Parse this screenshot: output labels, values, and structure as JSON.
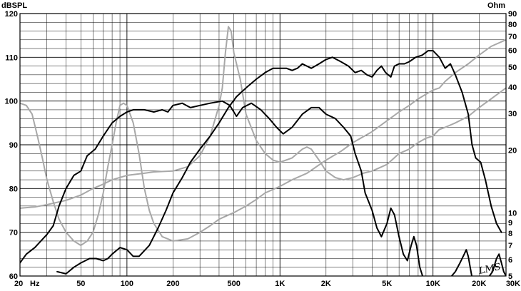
{
  "chart_data": {
    "type": "line",
    "ylabel": "dBSPL",
    "y2label": "Ohm",
    "signature": "LMS",
    "xscale": "log",
    "xlim": [
      20,
      30000
    ],
    "ylim": [
      60,
      120
    ],
    "y2lim": [
      5,
      90
    ],
    "y2scale": "log",
    "grid": true,
    "colors": {
      "dark": "#000000",
      "gray": "#a8a8a8"
    },
    "x_ticks": [
      {
        "v": 20,
        "label": "20"
      },
      {
        "v": 50,
        "label": "50"
      },
      {
        "v": 100,
        "label": "100"
      },
      {
        "v": 200,
        "label": "200"
      },
      {
        "v": 500,
        "label": "500"
      },
      {
        "v": 1000,
        "label": "1K"
      },
      {
        "v": 2000,
        "label": "2K"
      },
      {
        "v": 5000,
        "label": "5K"
      },
      {
        "v": 10000,
        "label": "10K"
      },
      {
        "v": 20000,
        "label": "20K"
      },
      {
        "v": 30000,
        "label": "30K"
      }
    ],
    "x_unit": "Hz",
    "y_ticks": [
      60,
      70,
      80,
      90,
      100,
      110,
      120
    ],
    "y2_ticks": [
      5,
      6,
      7,
      8,
      9,
      10,
      20,
      30,
      40,
      50,
      60,
      70,
      80,
      90
    ],
    "series": [
      {
        "color": "dark",
        "width": 2,
        "axis": "y",
        "points": [
          [
            20,
            63
          ],
          [
            22,
            65
          ],
          [
            25,
            66.5
          ],
          [
            30,
            69.5
          ],
          [
            33,
            71.5
          ],
          [
            36,
            76
          ],
          [
            40,
            80
          ],
          [
            45,
            83
          ],
          [
            50,
            84
          ],
          [
            55,
            87.5
          ],
          [
            62,
            89
          ],
          [
            70,
            92
          ],
          [
            80,
            95
          ],
          [
            90,
            96.5
          ],
          [
            100,
            97.5
          ],
          [
            110,
            98
          ],
          [
            130,
            98
          ],
          [
            150,
            97.5
          ],
          [
            170,
            98
          ],
          [
            185,
            97.5
          ],
          [
            200,
            99
          ],
          [
            230,
            99.5
          ],
          [
            260,
            98.5
          ],
          [
            300,
            99
          ],
          [
            350,
            99.5
          ],
          [
            420,
            100
          ],
          [
            470,
            99
          ],
          [
            520,
            96.5
          ],
          [
            570,
            98.5
          ],
          [
            650,
            99.5
          ],
          [
            750,
            98
          ],
          [
            850,
            96
          ],
          [
            950,
            94
          ],
          [
            1050,
            92.5
          ],
          [
            1200,
            94
          ],
          [
            1400,
            97
          ],
          [
            1600,
            98.5
          ],
          [
            1800,
            98.5
          ],
          [
            2000,
            97
          ],
          [
            2300,
            96
          ],
          [
            2600,
            94
          ],
          [
            2900,
            92
          ],
          [
            3100,
            88
          ],
          [
            3400,
            84
          ],
          [
            3600,
            79
          ],
          [
            4000,
            75
          ],
          [
            4300,
            71
          ],
          [
            4600,
            69
          ],
          [
            5000,
            72
          ],
          [
            5300,
            75.5
          ],
          [
            5600,
            74
          ],
          [
            6000,
            69
          ],
          [
            6400,
            65
          ],
          [
            6800,
            63.5
          ],
          [
            7200,
            67
          ],
          [
            7500,
            69
          ],
          [
            7800,
            67
          ],
          [
            8200,
            62
          ],
          [
            8600,
            59
          ],
          [
            9000,
            57
          ],
          [
            9500,
            56
          ]
        ]
      },
      {
        "color": "dark",
        "width": 2,
        "axis": "y",
        "points": [
          [
            35,
            61
          ],
          [
            40,
            60.5
          ],
          [
            45,
            62
          ],
          [
            50,
            63
          ],
          [
            57,
            64
          ],
          [
            63,
            64
          ],
          [
            70,
            63.5
          ],
          [
            75,
            64
          ],
          [
            80,
            65
          ],
          [
            90,
            66.5
          ],
          [
            100,
            66
          ],
          [
            110,
            64.5
          ],
          [
            120,
            64.5
          ],
          [
            140,
            67
          ],
          [
            160,
            71
          ],
          [
            180,
            75
          ],
          [
            200,
            79
          ],
          [
            230,
            82.5
          ],
          [
            260,
            86
          ],
          [
            300,
            89
          ],
          [
            350,
            92
          ],
          [
            400,
            95
          ],
          [
            460,
            98.5
          ],
          [
            520,
            101
          ],
          [
            600,
            103
          ],
          [
            700,
            105
          ],
          [
            800,
            106.5
          ],
          [
            900,
            107.5
          ],
          [
            1000,
            107.5
          ],
          [
            1100,
            107.5
          ],
          [
            1200,
            107
          ],
          [
            1300,
            107.5
          ],
          [
            1400,
            108.5
          ],
          [
            1600,
            107.5
          ],
          [
            1800,
            108.5
          ],
          [
            2000,
            109.5
          ],
          [
            2200,
            110
          ],
          [
            2500,
            109
          ],
          [
            2800,
            108
          ],
          [
            3100,
            106.5
          ],
          [
            3400,
            107
          ],
          [
            3700,
            106
          ],
          [
            4000,
            105.5
          ],
          [
            4300,
            107
          ],
          [
            4600,
            108
          ],
          [
            4900,
            106.5
          ],
          [
            5300,
            105.5
          ],
          [
            5600,
            108
          ],
          [
            6000,
            108.5
          ],
          [
            6500,
            108.5
          ],
          [
            7000,
            109
          ],
          [
            7700,
            110
          ],
          [
            8500,
            110.5
          ],
          [
            9300,
            111.5
          ],
          [
            10000,
            111.5
          ],
          [
            11000,
            110
          ],
          [
            12000,
            107.5
          ],
          [
            13000,
            108.5
          ],
          [
            14000,
            106
          ],
          [
            15500,
            102
          ],
          [
            17000,
            97
          ],
          [
            18000,
            90
          ],
          [
            19000,
            87
          ],
          [
            20500,
            86
          ],
          [
            22000,
            82
          ],
          [
            24000,
            76
          ],
          [
            26000,
            72
          ],
          [
            28000,
            70
          ]
        ]
      },
      {
        "color": "dark",
        "width": 2,
        "axis": "y",
        "points": [
          [
            13000,
            56
          ],
          [
            14000,
            61
          ],
          [
            15000,
            63
          ],
          [
            16000,
            65
          ],
          [
            16500,
            66
          ],
          [
            17000,
            64.5
          ],
          [
            17500,
            62
          ],
          [
            18000,
            59
          ],
          [
            18500,
            56
          ]
        ]
      },
      {
        "color": "dark",
        "width": 2,
        "axis": "y",
        "points": [
          [
            23000,
            58
          ],
          [
            24500,
            61
          ],
          [
            26000,
            64
          ],
          [
            27000,
            65
          ],
          [
            28000,
            63
          ],
          [
            29000,
            61
          ],
          [
            30000,
            60
          ]
        ]
      },
      {
        "color": "gray",
        "width": 2,
        "axis": "y",
        "points": [
          [
            20,
            75.5
          ],
          [
            25,
            75.8
          ],
          [
            30,
            76.3
          ],
          [
            40,
            77.3
          ],
          [
            50,
            78.5
          ],
          [
            60,
            80
          ],
          [
            70,
            81
          ],
          [
            80,
            82
          ],
          [
            100,
            83
          ],
          [
            130,
            83.5
          ],
          [
            150,
            83.8
          ],
          [
            200,
            84
          ],
          [
            250,
            85
          ],
          [
            300,
            87.5
          ],
          [
            350,
            92
          ],
          [
            400,
            99
          ],
          [
            420,
            103
          ],
          [
            440,
            111
          ],
          [
            460,
            117
          ],
          [
            480,
            116
          ],
          [
            500,
            111
          ],
          [
            550,
            105
          ],
          [
            600,
            97
          ],
          [
            700,
            91
          ],
          [
            800,
            88
          ],
          [
            900,
            86.5
          ],
          [
            1000,
            86
          ],
          [
            1200,
            87
          ],
          [
            1400,
            89
          ],
          [
            1500,
            89.5
          ],
          [
            1600,
            89
          ],
          [
            1800,
            86.5
          ],
          [
            2000,
            84
          ],
          [
            2300,
            82.5
          ],
          [
            2600,
            82
          ],
          [
            3000,
            82.5
          ],
          [
            3500,
            83.5
          ],
          [
            4000,
            84
          ],
          [
            5000,
            85.5
          ],
          [
            6000,
            88
          ],
          [
            7000,
            89
          ],
          [
            8000,
            90.5
          ],
          [
            9000,
            91.5
          ],
          [
            10000,
            92
          ],
          [
            11000,
            93.5
          ],
          [
            12000,
            94
          ],
          [
            14000,
            95
          ],
          [
            17000,
            96.5
          ],
          [
            20000,
            98.5
          ],
          [
            24000,
            100.5
          ],
          [
            30000,
            103
          ]
        ]
      },
      {
        "color": "gray",
        "width": 2,
        "axis": "y",
        "points": [
          [
            20,
            99.5
          ],
          [
            22,
            99
          ],
          [
            24,
            97
          ],
          [
            26,
            92
          ],
          [
            28,
            87
          ],
          [
            30,
            82
          ],
          [
            33,
            77
          ],
          [
            36,
            73
          ],
          [
            40,
            70
          ],
          [
            45,
            68
          ],
          [
            50,
            67
          ],
          [
            55,
            68
          ],
          [
            60,
            70
          ],
          [
            65,
            74
          ],
          [
            70,
            79
          ],
          [
            75,
            85
          ],
          [
            80,
            90
          ],
          [
            85,
            95
          ],
          [
            90,
            99
          ],
          [
            95,
            99.5
          ],
          [
            100,
            99
          ],
          [
            110,
            95
          ],
          [
            120,
            88
          ],
          [
            130,
            80
          ],
          [
            140,
            75
          ],
          [
            150,
            72
          ],
          [
            170,
            69
          ],
          [
            200,
            68
          ],
          [
            250,
            68.5
          ],
          [
            300,
            70
          ],
          [
            350,
            71.5
          ],
          [
            400,
            73
          ],
          [
            500,
            74.5
          ],
          [
            600,
            76
          ],
          [
            700,
            77.5
          ],
          [
            800,
            79
          ],
          [
            1000,
            80.5
          ],
          [
            1200,
            82
          ],
          [
            1500,
            83.5
          ],
          [
            2000,
            86.5
          ],
          [
            2500,
            88.5
          ],
          [
            3000,
            90.5
          ],
          [
            4000,
            93
          ],
          [
            5000,
            95.5
          ],
          [
            6000,
            97.5
          ],
          [
            7000,
            99
          ],
          [
            8000,
            100.5
          ],
          [
            10000,
            102.5
          ],
          [
            11000,
            103
          ],
          [
            12000,
            104.5
          ],
          [
            14000,
            106.5
          ],
          [
            17000,
            108.5
          ],
          [
            20000,
            110.5
          ],
          [
            24000,
            112.5
          ],
          [
            30000,
            114
          ]
        ]
      }
    ]
  }
}
